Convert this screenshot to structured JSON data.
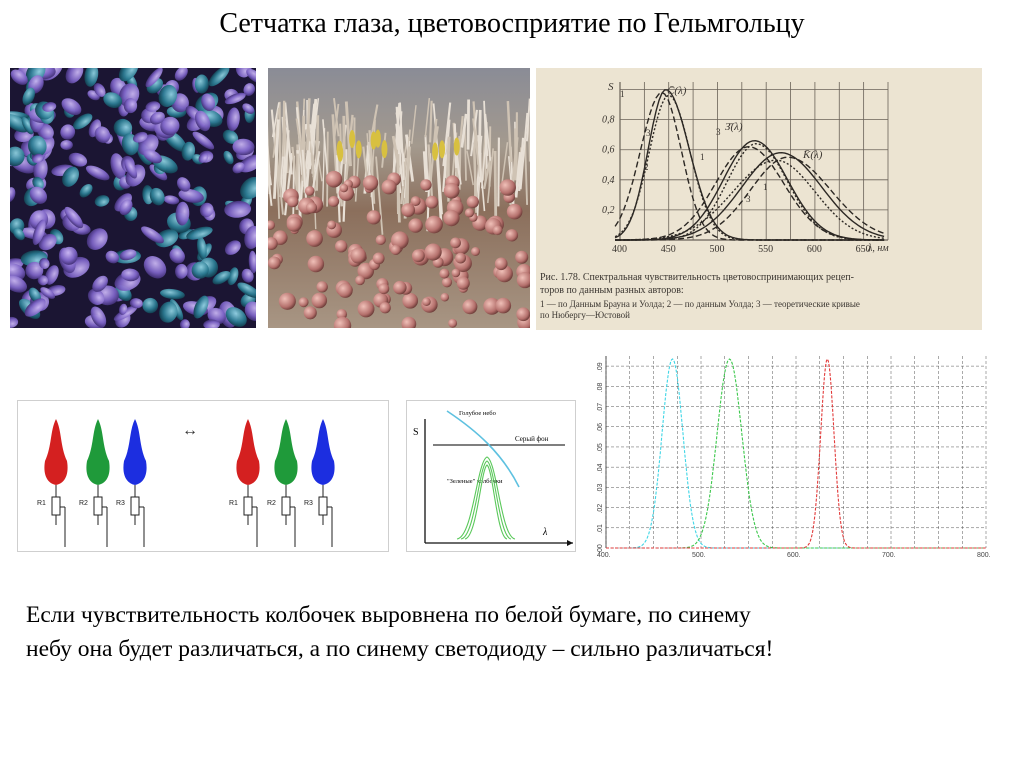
{
  "slide": {
    "title": "Сетчатка глаза, цветовосприятие по Гельмгольцу",
    "body_line1": "Если чувствительность колбочек выровнена по белой бумаге, по синему",
    "body_line2": "небу она будет различаться, а по синему светодиоду – сильно различаться!"
  },
  "images": {
    "photo1": "sem-retina-cells-violet",
    "photo2": "sem-retina-rods-cones-section"
  },
  "book_chart": {
    "ylabel": "S",
    "y_ticks": [
      "0,2",
      "0,4",
      "0,6",
      "0,8"
    ],
    "x_ticks": [
      "400",
      "450",
      "500",
      "550",
      "600",
      "650"
    ],
    "x_unit": "λ, нм",
    "curve_labels": {
      "c": "C̄(λ)",
      "z": "З̄(λ)",
      "k": "K̄(λ)"
    },
    "curve_numbers": [
      "1",
      "2",
      "3"
    ],
    "caption_line1": "Рис. 1.78. Спектральная чувствительность цветовоспринимающих рецеп-",
    "caption_line2": "торов по данным разных авторов:",
    "caption_line3": "1 — по Данным Брауна и Уолда; 2 — по данным Уолда; 3 — теоретические кривые",
    "caption_line4": "по Нюбергу—Юстовой",
    "colors": {
      "paper": "#ece4d2",
      "ink": "#3a3530"
    }
  },
  "cones": {
    "labels": [
      "R1",
      "R2",
      "R3"
    ],
    "arrow": "↔",
    "colors": [
      "#d42020",
      "#1f9a3a",
      "#1c2ee0"
    ]
  },
  "sketch": {
    "ylabel": "S",
    "xlabel": "λ",
    "label_sky": "Голубое небо",
    "label_grey": "Серый фон",
    "label_green": "\"Зеленые\" колбочки"
  },
  "led_chart": {
    "x_ticks": [
      "400.",
      "500.",
      "600.",
      "700.",
      "800."
    ],
    "y_ticks": [
      ".00",
      ".01",
      ".02",
      ".03",
      ".04",
      ".05",
      ".06",
      ".07",
      ".08",
      ".09"
    ],
    "colors": {
      "cyan": "#3fd6e6",
      "green": "#3cc84c",
      "red": "#e23a3a",
      "grid": "#555555"
    }
  }
}
